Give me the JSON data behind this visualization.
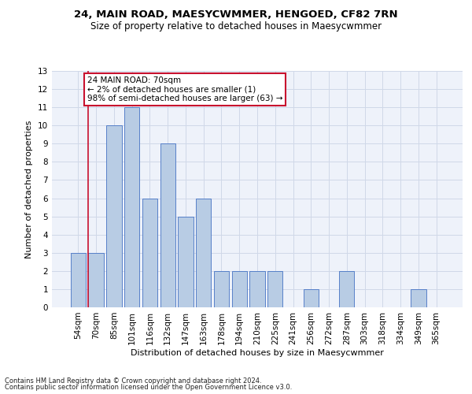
{
  "title1": "24, MAIN ROAD, MAESYCWMMER, HENGOED, CF82 7RN",
  "title2": "Size of property relative to detached houses in Maesycwmmer",
  "xlabel": "Distribution of detached houses by size in Maesycwmmer",
  "ylabel": "Number of detached properties",
  "footer1": "Contains HM Land Registry data © Crown copyright and database right 2024.",
  "footer2": "Contains public sector information licensed under the Open Government Licence v3.0.",
  "categories": [
    "54sqm",
    "70sqm",
    "85sqm",
    "101sqm",
    "116sqm",
    "132sqm",
    "147sqm",
    "163sqm",
    "178sqm",
    "194sqm",
    "210sqm",
    "225sqm",
    "241sqm",
    "256sqm",
    "272sqm",
    "287sqm",
    "303sqm",
    "318sqm",
    "334sqm",
    "349sqm",
    "365sqm"
  ],
  "values": [
    3,
    3,
    10,
    11,
    6,
    9,
    5,
    6,
    2,
    2,
    2,
    2,
    0,
    1,
    0,
    2,
    0,
    0,
    0,
    1,
    0
  ],
  "highlight_index": 1,
  "highlight_color": "#c8102e",
  "bar_color": "#b8cce4",
  "bar_edge_color": "#4472c4",
  "annotation_line1": "24 MAIN ROAD: 70sqm",
  "annotation_line2": "← 2% of detached houses are smaller (1)",
  "annotation_line3": "98% of semi-detached houses are larger (63) →",
  "annotation_box_color": "#ffffff",
  "annotation_border_color": "#c8102e",
  "ylim": [
    0,
    13
  ],
  "yticks": [
    0,
    1,
    2,
    3,
    4,
    5,
    6,
    7,
    8,
    9,
    10,
    11,
    12,
    13
  ],
  "grid_color": "#d0d8e8",
  "bg_color": "#eef2fa",
  "title1_fontsize": 9.5,
  "title2_fontsize": 8.5,
  "ylabel_fontsize": 8,
  "xlabel_fontsize": 8,
  "tick_fontsize": 7.5,
  "footer_fontsize": 6
}
